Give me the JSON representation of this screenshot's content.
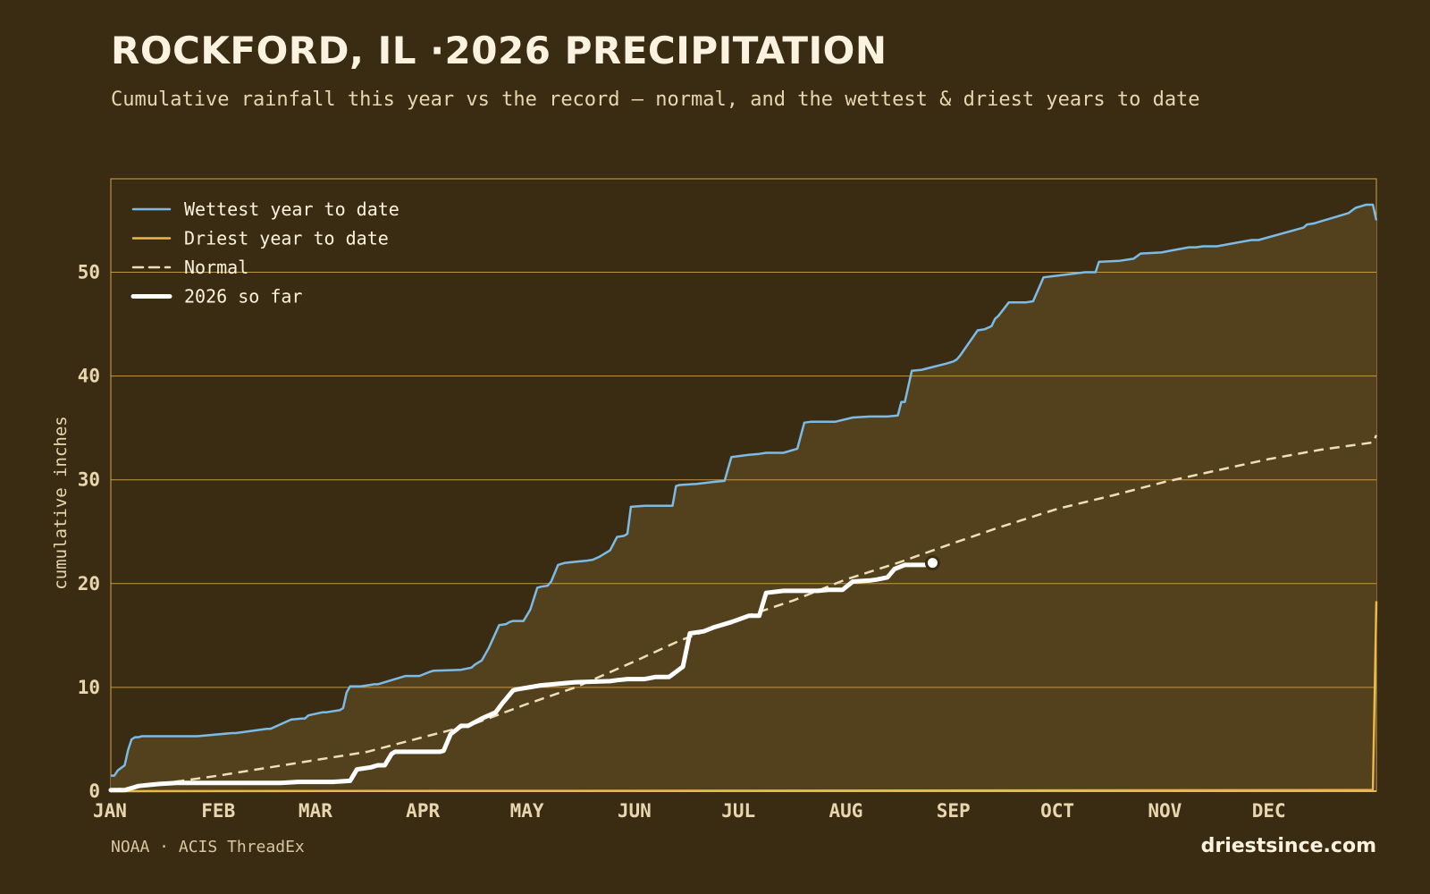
{
  "header": {
    "title": "ROCKFORD, IL ·2026 PRECIPITATION",
    "subtitle": "Cumulative rainfall this year vs the record — normal, and the wettest & driest years to date"
  },
  "footer": {
    "source": "NOAA · ACIS ThreadEx",
    "brand": "driestsince.com"
  },
  "colors": {
    "background": "#3a2c13",
    "plot_fill": "#53401d",
    "grid": "#d3a24a",
    "wettest": "#7bbbe6",
    "driest": "#e9b949",
    "normal": "#eedfb8",
    "current": "#ffffff"
  },
  "chart_data": {
    "type": "line",
    "ylabel": "cumulative inches",
    "xlabel": "",
    "ylim": [
      0,
      59
    ],
    "yticks": [
      0,
      10,
      20,
      30,
      40,
      50
    ],
    "x_unit": "day of year",
    "xlim": [
      1,
      366
    ],
    "months": [
      {
        "label": "JAN",
        "day": 1
      },
      {
        "label": "FEB",
        "day": 32
      },
      {
        "label": "MAR",
        "day": 60
      },
      {
        "label": "APR",
        "day": 91
      },
      {
        "label": "MAY",
        "day": 121
      },
      {
        "label": "JUN",
        "day": 152
      },
      {
        "label": "JUL",
        "day": 182
      },
      {
        "label": "AUG",
        "day": 213
      },
      {
        "label": "SEP",
        "day": 244
      },
      {
        "label": "OCT",
        "day": 274
      },
      {
        "label": "NOV",
        "day": 305
      },
      {
        "label": "DEC",
        "day": 335
      }
    ],
    "legend_position": "top-left",
    "grid": true,
    "series": [
      {
        "name": "Wettest year to date",
        "style": "solid",
        "x": [
          1,
          2,
          3,
          5,
          6,
          7,
          8,
          9,
          10,
          11,
          12,
          13,
          18,
          26,
          36,
          37,
          46,
          47,
          53,
          56,
          57,
          58,
          62,
          63,
          67,
          68,
          69,
          70,
          73,
          75,
          77,
          78,
          86,
          90,
          93,
          94,
          102,
          105,
          106,
          108,
          110,
          113,
          115,
          116,
          117,
          120,
          122,
          124,
          125,
          127,
          128,
          130,
          131,
          132,
          135,
          138,
          140,
          142,
          145,
          147,
          149,
          150,
          151,
          155,
          160,
          163,
          164,
          165,
          170,
          175,
          178,
          180,
          185,
          188,
          190,
          195,
          199,
          201,
          203,
          205,
          210,
          215,
          220,
          225,
          228,
          229,
          230,
          232,
          235,
          236,
          242,
          244,
          245,
          246,
          251,
          253,
          255,
          256,
          257,
          260,
          265,
          267,
          270,
          282,
          285,
          286,
          292,
          296,
          298,
          304,
          307,
          312,
          314,
          316,
          320,
          330,
          332,
          345,
          346,
          348,
          350,
          355,
          358,
          360,
          363,
          365,
          366
        ],
        "y": [
          1.5,
          1.5,
          2.0,
          2.5,
          4.0,
          5.0,
          5.2,
          5.2,
          5.3,
          5.3,
          5.3,
          5.3,
          5.3,
          5.3,
          5.6,
          5.6,
          6.0,
          6.0,
          6.9,
          7.0,
          7.0,
          7.3,
          7.6,
          7.6,
          7.8,
          8.0,
          9.5,
          10.1,
          10.1,
          10.2,
          10.3,
          10.3,
          11.1,
          11.1,
          11.5,
          11.6,
          11.7,
          11.9,
          12.2,
          12.6,
          13.8,
          16.0,
          16.1,
          16.3,
          16.4,
          16.4,
          17.5,
          19.6,
          19.7,
          19.8,
          20.2,
          21.8,
          21.9,
          22.0,
          22.1,
          22.2,
          22.3,
          22.6,
          23.2,
          24.5,
          24.6,
          24.8,
          27.4,
          27.5,
          27.5,
          27.5,
          29.4,
          29.5,
          29.6,
          29.8,
          29.9,
          32.2,
          32.4,
          32.5,
          32.6,
          32.6,
          33.0,
          35.5,
          35.6,
          35.6,
          35.6,
          36.0,
          36.1,
          36.1,
          36.2,
          37.5,
          37.5,
          40.5,
          40.6,
          40.7,
          41.2,
          41.4,
          41.6,
          42.0,
          44.4,
          44.5,
          44.8,
          45.5,
          45.8,
          47.1,
          47.1,
          47.2,
          49.5,
          50.0,
          50.0,
          51.0,
          51.1,
          51.3,
          51.8,
          51.9,
          52.1,
          52.4,
          52.4,
          52.5,
          52.5,
          53.1,
          53.1,
          54.3,
          54.6,
          54.7,
          54.9,
          55.4,
          55.7,
          56.2,
          56.5,
          56.5,
          55.0
        ]
      },
      {
        "name": "Driest year to date",
        "style": "solid",
        "x": [
          1,
          365,
          366
        ],
        "y": [
          0,
          0.1,
          18.3
        ]
      },
      {
        "name": "Normal",
        "style": "dashed",
        "x": [
          1,
          15,
          32,
          45,
          60,
          75,
          91,
          105,
          121,
          135,
          152,
          165,
          182,
          198,
          213,
          228,
          244,
          258,
          274,
          290,
          305,
          320,
          335,
          350,
          365,
          366
        ],
        "y": [
          0.1,
          0.7,
          1.5,
          2.2,
          3.0,
          3.8,
          5.2,
          6.4,
          8.4,
          10.0,
          12.5,
          14.5,
          16.6,
          18.4,
          20.4,
          22.0,
          23.9,
          25.5,
          27.2,
          28.5,
          29.8,
          30.9,
          32.0,
          32.9,
          33.6,
          34.3
        ]
      },
      {
        "name": "2026 so far",
        "style": "bold",
        "x": [
          1,
          5,
          7,
          9,
          12,
          15,
          20,
          30,
          50,
          55,
          65,
          70,
          72,
          76,
          78,
          80,
          82,
          83,
          88,
          96,
          97,
          99,
          101,
          102,
          104,
          108,
          110,
          112,
          114,
          115,
          117,
          118,
          125,
          135,
          145,
          147,
          150,
          155,
          158,
          162,
          164,
          166,
          168,
          172,
          175,
          180,
          185,
          188,
          190,
          195,
          200,
          205,
          208,
          210,
          212,
          215,
          220,
          222,
          225,
          227,
          230,
          236,
          238
        ],
        "y": [
          0.1,
          0.1,
          0.3,
          0.5,
          0.6,
          0.7,
          0.8,
          0.8,
          0.8,
          0.9,
          0.9,
          1.0,
          2.1,
          2.3,
          2.5,
          2.5,
          3.6,
          3.8,
          3.8,
          3.8,
          3.9,
          5.5,
          6.0,
          6.3,
          6.3,
          7.0,
          7.3,
          7.6,
          8.5,
          8.9,
          9.7,
          9.8,
          10.2,
          10.5,
          10.6,
          10.7,
          10.8,
          10.8,
          11.0,
          11.0,
          11.5,
          12.0,
          15.2,
          15.4,
          15.8,
          16.3,
          16.9,
          16.9,
          19.1,
          19.3,
          19.3,
          19.3,
          19.4,
          19.4,
          19.4,
          20.2,
          20.3,
          20.4,
          20.6,
          21.4,
          21.8,
          21.8,
          22.0
        ]
      }
    ]
  }
}
